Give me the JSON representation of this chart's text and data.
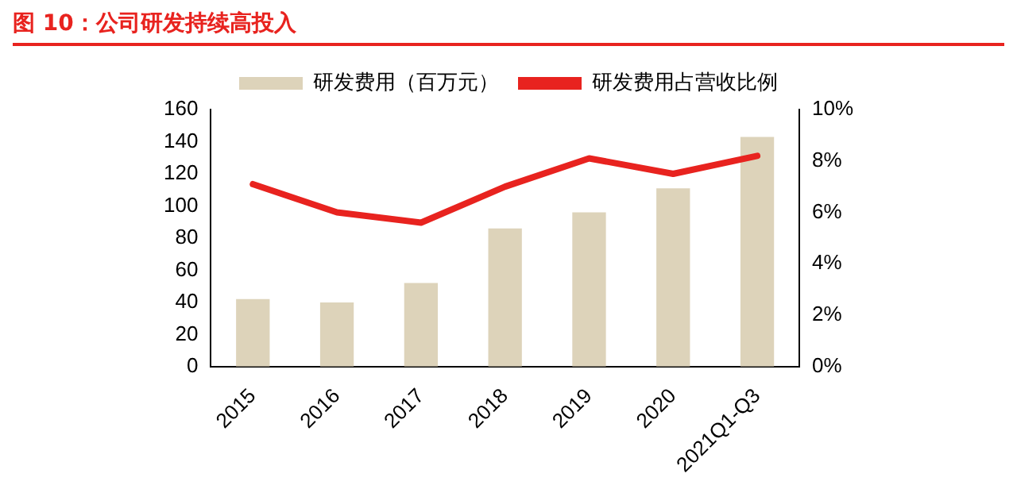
{
  "chart_data": {
    "type": "bar",
    "title": "图 10：公司研发持续高投入",
    "categories": [
      "2015",
      "2016",
      "2017",
      "2018",
      "2019",
      "2020",
      "2021Q1-Q3"
    ],
    "series": [
      {
        "name": "研发费用（百万元）",
        "color": "#ddd3ba",
        "values": [
          42,
          40,
          52,
          86,
          96,
          111,
          143
        ]
      },
      {
        "name": "研发费用占营收比例",
        "type": "line",
        "axis": "y2",
        "color": "#e8231f",
        "values": [
          7.1,
          6.0,
          5.6,
          7.0,
          8.1,
          7.5,
          8.2
        ]
      }
    ],
    "ylim": [
      0,
      160
    ],
    "yticks": [
      0,
      20,
      40,
      60,
      80,
      100,
      120,
      140,
      160
    ],
    "y2lim": [
      0,
      10
    ],
    "y2ticks": [
      {
        "value": 0,
        "label": "0%"
      },
      {
        "value": 2,
        "label": "2%"
      },
      {
        "value": 4,
        "label": "4%"
      },
      {
        "value": 6,
        "label": "6%"
      },
      {
        "value": 8,
        "label": "8%"
      },
      {
        "value": 10,
        "label": "10%"
      }
    ],
    "grid": false,
    "legend": "top",
    "marker": "none"
  }
}
